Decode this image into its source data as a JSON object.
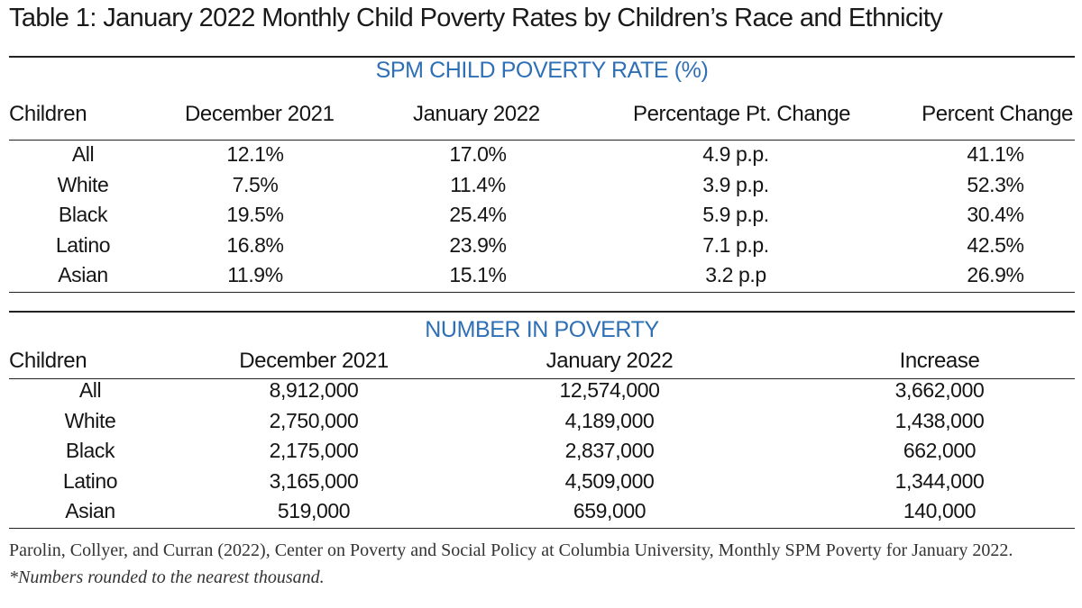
{
  "title": "Table 1: January 2022 Monthly Child Poverty Rates by Children’s Race and Ethnicity",
  "rate_section": {
    "heading": "SPM CHILD POVERTY RATE (%)",
    "columns": [
      "Children",
      "December 2021",
      "January 2022",
      "Percentage Pt. Change",
      "Percent Change"
    ],
    "rows": [
      [
        "All",
        "12.1%",
        "17.0%",
        "4.9 p.p.",
        "41.1%"
      ],
      [
        "White",
        "7.5%",
        "11.4%",
        "3.9 p.p.",
        "52.3%"
      ],
      [
        "Black",
        "19.5%",
        "25.4%",
        "5.9 p.p.",
        "30.4%"
      ],
      [
        "Latino",
        "16.8%",
        "23.9%",
        "7.1 p.p.",
        "42.5%"
      ],
      [
        "Asian",
        "11.9%",
        "15.1%",
        "3.2 p.p",
        "26.9%"
      ]
    ]
  },
  "number_section": {
    "heading": "NUMBER IN POVERTY",
    "columns": [
      "Children",
      "December 2021",
      "January 2022",
      "Increase"
    ],
    "rows": [
      [
        "All",
        "8,912,000",
        "12,574,000",
        "3,662,000"
      ],
      [
        "White",
        "2,750,000",
        "4,189,000",
        "1,438,000"
      ],
      [
        "Black",
        "2,175,000",
        "2,837,000",
        "662,000"
      ],
      [
        "Latino",
        "3,165,000",
        "4,509,000",
        "1,344,000"
      ],
      [
        "Asian",
        "519,000",
        "659,000",
        "140,000"
      ]
    ]
  },
  "footnote": {
    "source": "Parolin, Collyer, and Curran (2022), Center on Poverty and Social Policy at Columbia University, Monthly SPM Poverty for January 2022.",
    "note": "*Numbers rounded to the nearest thousand."
  },
  "colors": {
    "heading_blue": "#2e6fb5",
    "rule": "#222222"
  }
}
